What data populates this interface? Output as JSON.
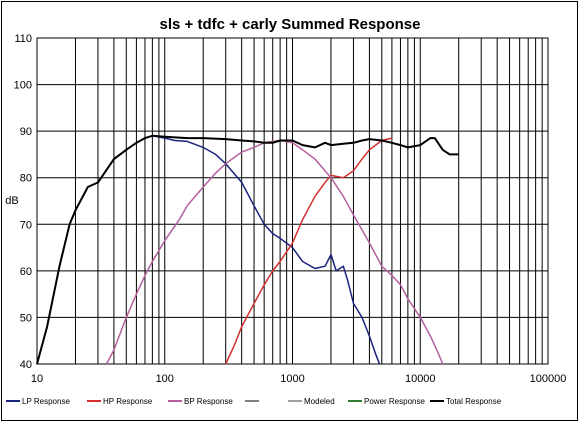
{
  "chart_data": {
    "type": "line",
    "title": "sls + tdfc + carly  Summed Response",
    "ylabel": "dB",
    "xlabel": "",
    "x_scale": "log",
    "xlim": [
      10,
      100000
    ],
    "ylim": [
      40,
      110
    ],
    "grid": true,
    "legend_position": "bottom",
    "x_ticks": [
      "10",
      "100",
      "1000",
      "10000",
      "100000"
    ],
    "y_ticks": [
      "40",
      "50",
      "60",
      "70",
      "80",
      "90",
      "100",
      "110"
    ],
    "series": [
      {
        "name": "LP Response",
        "color": "#1a237e",
        "points": [
          [
            10,
            40
          ],
          [
            12,
            48
          ],
          [
            15,
            61
          ],
          [
            18,
            70
          ],
          [
            20,
            73
          ],
          [
            25,
            78
          ],
          [
            30,
            79
          ],
          [
            40,
            84
          ],
          [
            50,
            86
          ],
          [
            60,
            87.5
          ],
          [
            70,
            88.5
          ],
          [
            80,
            89
          ],
          [
            100,
            88.5
          ],
          [
            120,
            88
          ],
          [
            150,
            87.8
          ],
          [
            200,
            86.5
          ],
          [
            250,
            85
          ],
          [
            300,
            83
          ],
          [
            400,
            79
          ],
          [
            500,
            74
          ],
          [
            600,
            70
          ],
          [
            700,
            68
          ],
          [
            800,
            67
          ],
          [
            1000,
            65
          ],
          [
            1200,
            62
          ],
          [
            1500,
            60.5
          ],
          [
            1800,
            61
          ],
          [
            2000,
            63.5
          ],
          [
            2200,
            60
          ],
          [
            2500,
            61
          ],
          [
            2700,
            58
          ],
          [
            3000,
            53
          ],
          [
            3500,
            50
          ],
          [
            4000,
            46
          ],
          [
            4500,
            42
          ],
          [
            4800,
            40
          ]
        ]
      },
      {
        "name": "HP Response",
        "color": "#d32f2f",
        "points": [
          [
            300,
            40
          ],
          [
            350,
            44
          ],
          [
            400,
            48
          ],
          [
            500,
            53
          ],
          [
            600,
            57
          ],
          [
            700,
            60
          ],
          [
            800,
            62
          ],
          [
            1000,
            66
          ],
          [
            1200,
            71
          ],
          [
            1500,
            76
          ],
          [
            1800,
            79
          ],
          [
            2000,
            80.5
          ],
          [
            2500,
            80
          ],
          [
            3000,
            81.5
          ],
          [
            3500,
            84
          ],
          [
            4000,
            86
          ],
          [
            5000,
            88
          ],
          [
            6000,
            88.5
          ]
        ]
      },
      {
        "name": "BP Response",
        "color": "#b5609e",
        "points": [
          [
            35,
            40
          ],
          [
            40,
            43
          ],
          [
            50,
            50
          ],
          [
            60,
            55
          ],
          [
            70,
            59
          ],
          [
            80,
            62
          ],
          [
            100,
            66.5
          ],
          [
            130,
            71
          ],
          [
            150,
            74
          ],
          [
            200,
            78
          ],
          [
            250,
            81
          ],
          [
            300,
            83
          ],
          [
            400,
            85.5
          ],
          [
            500,
            86.5
          ],
          [
            600,
            87.5
          ],
          [
            700,
            87.8
          ],
          [
            800,
            88
          ],
          [
            1000,
            87.5
          ],
          [
            1200,
            86
          ],
          [
            1500,
            84
          ],
          [
            2000,
            80
          ],
          [
            2500,
            76
          ],
          [
            3000,
            72
          ],
          [
            4000,
            66
          ],
          [
            5000,
            61
          ],
          [
            6000,
            59
          ],
          [
            7000,
            57
          ],
          [
            8000,
            54
          ],
          [
            10000,
            50
          ],
          [
            12000,
            46
          ],
          [
            14000,
            42
          ],
          [
            15000,
            40
          ]
        ]
      },
      {
        "name": "",
        "color": "#808080",
        "points": []
      },
      {
        "name": "Modeled",
        "color": "#9e9e9e",
        "points": []
      },
      {
        "name": "Power Response",
        "color": "#2e7d32",
        "points": []
      },
      {
        "name": "Total Response",
        "color": "#000000",
        "points": [
          [
            10,
            40
          ],
          [
            12,
            48
          ],
          [
            15,
            61
          ],
          [
            18,
            70
          ],
          [
            20,
            73
          ],
          [
            25,
            78
          ],
          [
            30,
            79
          ],
          [
            40,
            84
          ],
          [
            50,
            86
          ],
          [
            60,
            87.5
          ],
          [
            70,
            88.5
          ],
          [
            80,
            89
          ],
          [
            100,
            88.8
          ],
          [
            150,
            88.5
          ],
          [
            200,
            88.5
          ],
          [
            300,
            88.3
          ],
          [
            400,
            88
          ],
          [
            500,
            87.8
          ],
          [
            600,
            87.5
          ],
          [
            700,
            87.5
          ],
          [
            800,
            88
          ],
          [
            1000,
            88
          ],
          [
            1200,
            87
          ],
          [
            1500,
            86.5
          ],
          [
            1800,
            87.5
          ],
          [
            2000,
            87
          ],
          [
            2500,
            87.3
          ],
          [
            3000,
            87.5
          ],
          [
            3500,
            88
          ],
          [
            4000,
            88.3
          ],
          [
            5000,
            88
          ],
          [
            6000,
            87.5
          ],
          [
            7000,
            87
          ],
          [
            8000,
            86.5
          ],
          [
            10000,
            87
          ],
          [
            12000,
            88.5
          ],
          [
            13000,
            88.5
          ],
          [
            15000,
            86
          ],
          [
            17000,
            85
          ],
          [
            20000,
            85
          ]
        ]
      }
    ]
  }
}
